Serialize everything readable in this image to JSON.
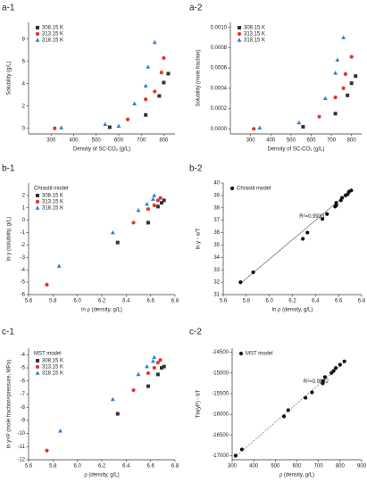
{
  "chart_data": [
    {
      "type": "scatter",
      "label": "a-1",
      "x_label": "Density of SC-CO₂ (g/L)",
      "y_label": "Solubility (g/L)",
      "xlim": [
        200,
        850
      ],
      "xticks": [
        300,
        400,
        500,
        600,
        700,
        800
      ],
      "ylim": [
        -0.5,
        9.5
      ],
      "yticks": [
        0,
        2,
        4,
        6,
        8
      ],
      "legend": "upper left",
      "series": [
        {
          "name": "308.15 K",
          "color": "#333333",
          "marker": "square",
          "x": [
            560,
            720,
            780,
            800,
            820
          ],
          "values": [
            0.1,
            1.2,
            2.9,
            4.1,
            4.9
          ]
        },
        {
          "name": "313.15 K",
          "color": "#e8322a",
          "marker": "circle",
          "x": [
            316,
            640,
            720,
            760,
            790,
            800
          ],
          "values": [
            0.0,
            0.8,
            2.6,
            3.3,
            5.0,
            6.3
          ]
        },
        {
          "name": "318.15 K",
          "color": "#2a7fd6",
          "marker": "triangle",
          "x": [
            345,
            540,
            600,
            670,
            720,
            730,
            760
          ],
          "values": [
            0.05,
            0.35,
            0.2,
            2.2,
            3.8,
            5.5,
            7.7
          ]
        }
      ]
    },
    {
      "type": "scatter",
      "label": "a-2",
      "x_label": "Density of SC-CO₂ (g/L)",
      "y_label": "Solubility (mole fraction)",
      "xlim": [
        200,
        850
      ],
      "xticks": [
        300,
        400,
        500,
        600,
        700,
        800
      ],
      "ylim": [
        -5e-05,
        0.00105
      ],
      "yticks": [
        {
          "value": 0,
          "label": "0.0000"
        },
        {
          "value": 0.0002,
          "label": "0.0002"
        },
        {
          "value": 0.0004,
          "label": "0.0004"
        },
        {
          "value": 0.0006,
          "label": "0.0006"
        },
        {
          "value": 0.0008,
          "label": "0.0008"
        },
        {
          "value": 0.001,
          "label": "0.0010"
        }
      ],
      "legend": "upper left",
      "series": [
        {
          "name": "308.15 K",
          "color": "#333333",
          "marker": "square",
          "x": [
            560,
            720,
            780,
            800,
            820
          ],
          "values": [
            2e-05,
            0.00015,
            0.00033,
            0.00045,
            0.00052
          ]
        },
        {
          "name": "313.15 K",
          "color": "#e8322a",
          "marker": "circle",
          "x": [
            316,
            640,
            720,
            760,
            770,
            800
          ],
          "values": [
            0.0,
            0.00012,
            0.00031,
            0.0004,
            0.00054,
            0.00071
          ]
        },
        {
          "name": "318.15 K",
          "color": "#2a7fd6",
          "marker": "triangle",
          "x": [
            345,
            540,
            670,
            720,
            730,
            760
          ],
          "values": [
            1e-05,
            6e-05,
            0.0003,
            0.00055,
            0.00068,
            0.0009
          ]
        }
      ]
    },
    {
      "type": "scatter",
      "label": "b-1",
      "x_label": "ln ρ (density, g/L)",
      "y_label": "ln y (solubility, g/L)",
      "legend_title": "Chrastil model",
      "xlim": [
        5.6,
        6.8
      ],
      "xticks": [
        5.6,
        5.8,
        {
          "value": 6,
          "label": "6.0"
        },
        6.2,
        6.4,
        6.6,
        6.8
      ],
      "ylim": [
        -6,
        3
      ],
      "yticks": [
        -6,
        -5,
        -4,
        -3,
        -2,
        -1,
        0,
        1,
        2
      ],
      "legend": "upper left",
      "series": [
        {
          "name": "308.15 K",
          "color": "#333333",
          "marker": "square",
          "x": [
            6.33,
            6.58,
            6.66,
            6.69,
            6.71
          ],
          "values": [
            -1.8,
            -0.2,
            1.1,
            1.4,
            1.6
          ]
        },
        {
          "name": "313.15 K",
          "color": "#e8322a",
          "marker": "circle",
          "x": [
            5.75,
            6.46,
            6.58,
            6.63,
            6.66,
            6.68
          ],
          "values": [
            -5.2,
            -0.2,
            0.9,
            1.2,
            1.6,
            1.8
          ]
        },
        {
          "name": "318.15 K",
          "color": "#2a7fd6",
          "marker": "triangle",
          "x": [
            5.85,
            6.29,
            6.5,
            6.57,
            6.62,
            6.63
          ],
          "values": [
            -3.7,
            -1.0,
            0.8,
            1.3,
            1.7,
            2.0
          ]
        }
      ]
    },
    {
      "type": "scatter",
      "label": "b-2",
      "x_label": "ln ρ (density, g/L)",
      "y_label": "ln y - a/T",
      "annotation": "R²=0.9933",
      "xlim": [
        5.6,
        6.8
      ],
      "xticks": [
        5.6,
        5.8,
        {
          "value": 6,
          "label": "6.0"
        },
        6.2,
        6.4,
        6.6,
        6.8
      ],
      "ylim": [
        31,
        40
      ],
      "yticks": [
        31,
        32,
        33,
        34,
        35,
        36,
        37,
        38,
        39,
        40
      ],
      "legend": "upper left",
      "fit": {
        "x": [
          5.75,
          6.72
        ],
        "y": [
          31.9,
          39.5
        ],
        "style": "solid"
      },
      "series": [
        {
          "name": "Chrastil model",
          "color": "#111111",
          "marker": "circle",
          "x": [
            5.75,
            5.86,
            6.29,
            6.33,
            6.46,
            6.5,
            6.57,
            6.58,
            6.58,
            6.62,
            6.63,
            6.66,
            6.68,
            6.69,
            6.71
          ],
          "values": [
            32.0,
            32.8,
            35.5,
            36.0,
            37.1,
            37.5,
            38.1,
            38.2,
            38.4,
            38.6,
            38.8,
            39.0,
            39.1,
            39.3,
            39.4
          ]
        }
      ]
    },
    {
      "type": "scatter",
      "label": "c-1",
      "x_label": "ρ (density, g/L)",
      "y_label": "ln y×P (mole fraction×pressure, MPa)",
      "legend_title": "MST model",
      "xlim": [
        5.6,
        6.8
      ],
      "xticks": [
        5.6,
        5.8,
        {
          "value": 6,
          "label": "6.0"
        },
        6.2,
        6.4,
        6.6,
        6.8
      ],
      "ylim": [
        -12,
        -3.5
      ],
      "yticks": [
        -12,
        -11,
        -10,
        -9,
        -8,
        -7,
        -6,
        -5,
        -4
      ],
      "legend": "upper left",
      "series": [
        {
          "name": "308.15 K",
          "color": "#333333",
          "marker": "square",
          "x": [
            6.33,
            6.58,
            6.66,
            6.69,
            6.71
          ],
          "values": [
            -8.5,
            -6.4,
            -5.5,
            -5.0,
            -4.9
          ]
        },
        {
          "name": "313.15 K",
          "color": "#e8322a",
          "marker": "circle",
          "x": [
            5.75,
            6.46,
            6.58,
            6.63,
            6.66,
            6.68
          ],
          "values": [
            -11.3,
            -6.7,
            -5.4,
            -5.0,
            -4.6,
            -4.4
          ]
        },
        {
          "name": "318.15 K",
          "color": "#2a7fd6",
          "marker": "triangle",
          "x": [
            5.86,
            6.29,
            6.5,
            6.57,
            6.62,
            6.63
          ],
          "values": [
            -9.8,
            -7.4,
            -5.5,
            -4.9,
            -4.5,
            -4.2
          ]
        }
      ]
    },
    {
      "type": "scatter",
      "label": "c-2",
      "x_label": "ρ (density, g/L)",
      "y_label": "Tln(yP) - bT",
      "annotation": "R²=0.9992",
      "xlim": [
        300,
        900
      ],
      "xticks": [
        300,
        400,
        500,
        600,
        700,
        800,
        900
      ],
      "ylim": [
        -17100,
        -14400
      ],
      "yticks": [
        -17000,
        -16500,
        -16000,
        -15500,
        -15000,
        -14500
      ],
      "legend": "upper left",
      "fit": {
        "x": [
          310,
          830
        ],
        "y": [
          -17050,
          -14700
        ],
        "style": "dashed"
      },
      "series": [
        {
          "name": "MST model",
          "color": "#111111",
          "marker": "circle",
          "x": [
            316,
            345,
            540,
            560,
            640,
            670,
            720,
            720,
            730,
            760,
            770,
            780,
            800,
            820
          ],
          "values": [
            -17000,
            -16850,
            -16050,
            -15900,
            -15600,
            -15470,
            -15250,
            -15200,
            -15100,
            -15000,
            -14950,
            -14880,
            -14800,
            -14720
          ]
        }
      ]
    }
  ]
}
